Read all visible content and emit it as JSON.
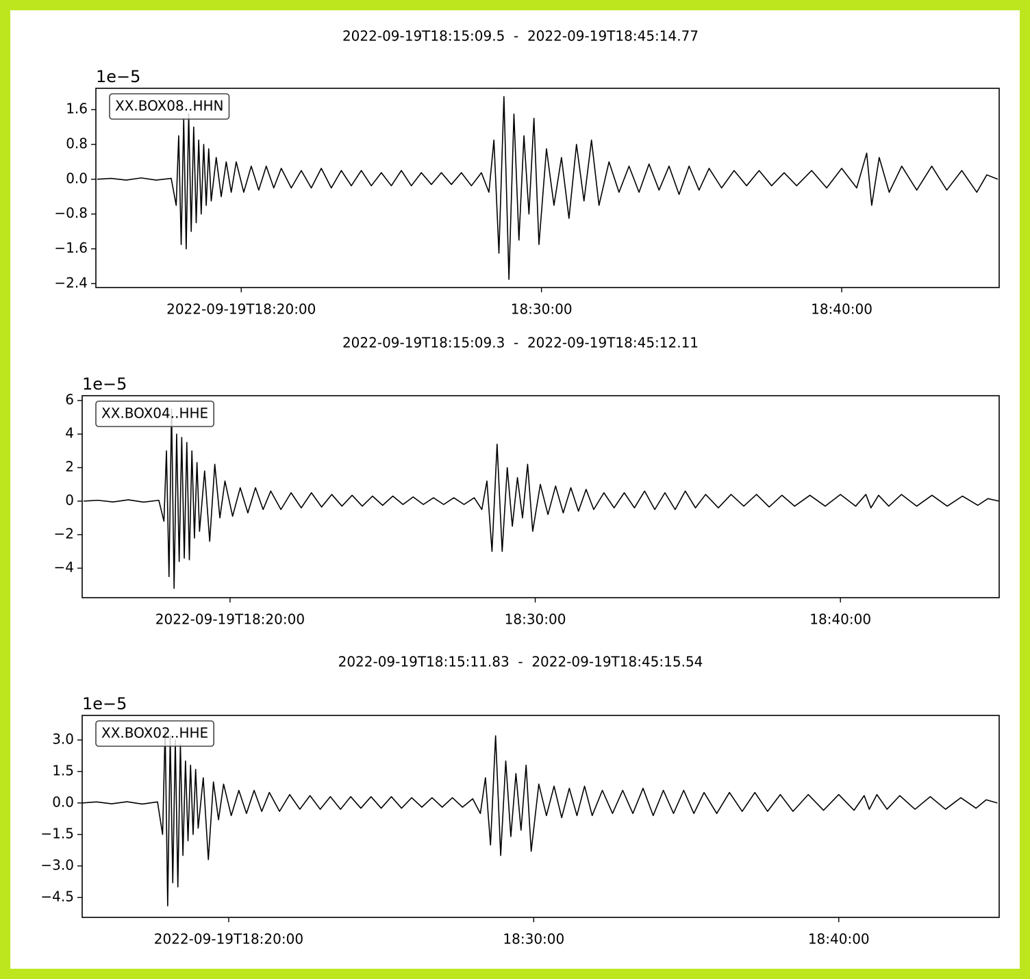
{
  "chart_data": [
    {
      "type": "line",
      "title": "2022-09-19T18:15:09.5  -  2022-09-19T18:45:14.77",
      "y_offset_label": "1e−5",
      "xlim": [
        "2022-09-19T18:15:09.5",
        "2022-09-19T18:45:14.77"
      ],
      "xticks": [
        "2022-09-19T18:20:00",
        {
          "value": "2022-09-19T18:30:00",
          "label": "18:30:00"
        },
        {
          "value": "2022-09-19T18:40:00",
          "label": "18:40:00"
        }
      ],
      "ylim": [
        -2.49,
        2.09
      ],
      "yticks": [
        {
          "value": -2.4,
          "label": "−2.4"
        },
        {
          "value": -1.6,
          "label": "−1.6"
        },
        {
          "value": -0.8,
          "label": "−0.8"
        },
        {
          "value": 0,
          "label": "0.0"
        },
        0.8,
        1.6
      ],
      "x": [
        "18:15:12",
        "18:15:40",
        "18:16:10",
        "18:16:40",
        "18:17:10",
        "18:17:40",
        "18:17:50",
        "18:17:55",
        "18:18:00",
        "18:18:05",
        "18:18:10",
        "18:18:15",
        "18:18:20",
        "18:18:25",
        "18:18:30",
        "18:18:35",
        "18:18:40",
        "18:18:45",
        "18:18:50",
        "18:18:55",
        "18:19:00",
        "18:19:10",
        "18:19:20",
        "18:19:30",
        "18:19:40",
        "18:19:50",
        "18:20:05",
        "18:20:20",
        "18:20:35",
        "18:20:50",
        "18:21:05",
        "18:21:20",
        "18:21:40",
        "18:22:00",
        "18:22:20",
        "18:22:40",
        "18:23:00",
        "18:23:20",
        "18:23:40",
        "18:24:00",
        "18:24:20",
        "18:24:40",
        "18:25:00",
        "18:25:20",
        "18:25:40",
        "18:26:00",
        "18:26:20",
        "18:26:40",
        "18:27:00",
        "18:27:20",
        "18:27:40",
        "18:28:00",
        "18:28:15",
        "18:28:25",
        "18:28:35",
        "18:28:45",
        "18:28:55",
        "18:29:05",
        "18:29:15",
        "18:29:25",
        "18:29:35",
        "18:29:45",
        "18:29:55",
        "18:30:10",
        "18:30:25",
        "18:30:40",
        "18:30:55",
        "18:31:10",
        "18:31:25",
        "18:31:40",
        "18:31:55",
        "18:32:15",
        "18:32:35",
        "18:32:55",
        "18:33:15",
        "18:33:35",
        "18:33:55",
        "18:34:15",
        "18:34:35",
        "18:34:55",
        "18:35:15",
        "18:35:35",
        "18:36:00",
        "18:36:25",
        "18:36:50",
        "18:37:15",
        "18:37:40",
        "18:38:05",
        "18:38:30",
        "18:39:00",
        "18:39:30",
        "18:40:00",
        "18:40:30",
        "18:40:50",
        "18:41:00",
        "18:41:15",
        "18:41:35",
        "18:42:00",
        "18:42:30",
        "18:43:00",
        "18:43:30",
        "18:44:00",
        "18:44:30",
        "18:44:50",
        "18:45:12"
      ],
      "series": [
        {
          "name": "XX.BOX08..HHN",
          "color": "#000000",
          "values": [
            0,
            0.02,
            -0.02,
            0.03,
            -0.02,
            0.02,
            -0.6,
            1.0,
            -1.5,
            1.4,
            -1.6,
            1.5,
            -1.2,
            1.2,
            -1.0,
            0.9,
            -0.8,
            0.8,
            -0.6,
            0.7,
            -0.5,
            0.5,
            -0.4,
            0.4,
            -0.3,
            0.4,
            -0.3,
            0.3,
            -0.25,
            0.3,
            -0.2,
            0.25,
            -0.2,
            0.2,
            -0.2,
            0.25,
            -0.2,
            0.2,
            -0.15,
            0.2,
            -0.15,
            0.15,
            -0.15,
            0.2,
            -0.15,
            0.15,
            -0.12,
            0.15,
            -0.12,
            0.15,
            -0.15,
            0.15,
            -0.3,
            0.9,
            -1.7,
            1.9,
            -2.3,
            1.5,
            -1.4,
            1.0,
            -0.8,
            1.4,
            -1.5,
            0.7,
            -0.6,
            0.5,
            -0.9,
            0.8,
            -0.5,
            0.9,
            -0.6,
            0.4,
            -0.3,
            0.3,
            -0.3,
            0.35,
            -0.25,
            0.3,
            -0.35,
            0.3,
            -0.25,
            0.25,
            -0.2,
            0.2,
            -0.15,
            0.2,
            -0.15,
            0.15,
            -0.15,
            0.2,
            -0.2,
            0.25,
            -0.2,
            0.6,
            -0.6,
            0.5,
            -0.3,
            0.3,
            -0.25,
            0.3,
            -0.25,
            0.2,
            -0.3,
            0.1,
            0
          ]
        }
      ]
    },
    {
      "type": "line",
      "title": "2022-09-19T18:15:09.3  -  2022-09-19T18:45:12.11",
      "y_offset_label": "1e−5",
      "xlim": [
        "2022-09-19T18:15:09.3",
        "2022-09-19T18:45:12.11"
      ],
      "xticks": [
        "2022-09-19T18:20:00",
        {
          "value": "2022-09-19T18:30:00",
          "label": "18:30:00"
        },
        {
          "value": "2022-09-19T18:40:00",
          "label": "18:40:00"
        }
      ],
      "ylim": [
        -5.76,
        6.29
      ],
      "yticks": [
        {
          "value": -4,
          "label": "−4"
        },
        {
          "value": -2,
          "label": "−2"
        },
        0,
        2,
        4,
        6
      ],
      "x": [
        "18:15:12",
        "18:15:40",
        "18:16:10",
        "18:16:40",
        "18:17:10",
        "18:17:40",
        "18:17:50",
        "18:17:55",
        "18:18:00",
        "18:18:05",
        "18:18:10",
        "18:18:15",
        "18:18:20",
        "18:18:25",
        "18:18:30",
        "18:18:35",
        "18:18:40",
        "18:18:45",
        "18:18:50",
        "18:18:55",
        "18:19:00",
        "18:19:10",
        "18:19:20",
        "18:19:30",
        "18:19:40",
        "18:19:50",
        "18:20:05",
        "18:20:20",
        "18:20:35",
        "18:20:50",
        "18:21:05",
        "18:21:20",
        "18:21:40",
        "18:22:00",
        "18:22:20",
        "18:22:40",
        "18:23:00",
        "18:23:20",
        "18:23:40",
        "18:24:00",
        "18:24:20",
        "18:24:40",
        "18:25:00",
        "18:25:20",
        "18:25:40",
        "18:26:00",
        "18:26:20",
        "18:26:40",
        "18:27:00",
        "18:27:20",
        "18:27:40",
        "18:28:00",
        "18:28:15",
        "18:28:25",
        "18:28:35",
        "18:28:45",
        "18:28:55",
        "18:29:05",
        "18:29:15",
        "18:29:25",
        "18:29:35",
        "18:29:45",
        "18:29:55",
        "18:30:10",
        "18:30:25",
        "18:30:40",
        "18:30:55",
        "18:31:10",
        "18:31:25",
        "18:31:40",
        "18:31:55",
        "18:32:15",
        "18:32:35",
        "18:32:55",
        "18:33:15",
        "18:33:35",
        "18:33:55",
        "18:34:15",
        "18:34:35",
        "18:34:55",
        "18:35:15",
        "18:35:35",
        "18:36:00",
        "18:36:25",
        "18:36:50",
        "18:37:15",
        "18:37:40",
        "18:38:05",
        "18:38:30",
        "18:39:00",
        "18:39:30",
        "18:40:00",
        "18:40:30",
        "18:40:50",
        "18:41:00",
        "18:41:15",
        "18:41:35",
        "18:42:00",
        "18:42:30",
        "18:43:00",
        "18:43:30",
        "18:44:00",
        "18:44:30",
        "18:44:50",
        "18:45:12"
      ],
      "series": [
        {
          "name": "XX.BOX04..HHE",
          "color": "#000000",
          "values": [
            0,
            0.05,
            -0.05,
            0.08,
            -0.06,
            0.05,
            -1.2,
            3.0,
            -4.5,
            5.5,
            -5.2,
            4.0,
            -3.6,
            3.8,
            -3.4,
            3.5,
            -3.5,
            3.0,
            -2.2,
            2.3,
            -1.8,
            1.8,
            -2.4,
            2.2,
            -1.0,
            1.2,
            -0.9,
            0.8,
            -0.7,
            0.8,
            -0.5,
            0.6,
            -0.5,
            0.5,
            -0.4,
            0.5,
            -0.35,
            0.4,
            -0.3,
            0.35,
            -0.3,
            0.3,
            -0.25,
            0.3,
            -0.2,
            0.25,
            -0.2,
            0.2,
            -0.2,
            0.2,
            -0.2,
            0.2,
            -0.5,
            1.2,
            -3.0,
            3.4,
            -3.0,
            2.0,
            -1.5,
            1.4,
            -1.0,
            2.2,
            -1.8,
            1.0,
            -0.8,
            0.9,
            -0.7,
            0.8,
            -0.6,
            0.7,
            -0.5,
            0.5,
            -0.4,
            0.5,
            -0.4,
            0.6,
            -0.5,
            0.5,
            -0.5,
            0.6,
            -0.4,
            0.4,
            -0.4,
            0.4,
            -0.3,
            0.4,
            -0.35,
            0.35,
            -0.3,
            0.35,
            -0.3,
            0.4,
            -0.3,
            0.4,
            -0.4,
            0.35,
            -0.3,
            0.4,
            -0.3,
            0.35,
            -0.3,
            0.3,
            -0.25,
            0.15,
            0
          ]
        }
      ]
    },
    {
      "type": "line",
      "title": "2022-09-19T18:15:11.83  -  2022-09-19T18:45:15.54",
      "y_offset_label": "1e−5",
      "xlim": [
        "2022-09-19T18:15:11.83",
        "2022-09-19T18:45:15.54"
      ],
      "xticks": [
        "2022-09-19T18:20:00",
        {
          "value": "2022-09-19T18:30:00",
          "label": "18:30:00"
        },
        {
          "value": "2022-09-19T18:40:00",
          "label": "18:40:00"
        }
      ],
      "ylim": [
        -5.45,
        4.17
      ],
      "yticks": [
        {
          "value": -4.5,
          "label": "−4.5"
        },
        {
          "value": -3,
          "label": "−3.0"
        },
        {
          "value": -1.5,
          "label": "−1.5"
        },
        {
          "value": 0,
          "label": "0.0"
        },
        1.5,
        {
          "value": 3,
          "label": "3.0"
        }
      ],
      "x": [
        "18:15:12",
        "18:15:40",
        "18:16:10",
        "18:16:40",
        "18:17:10",
        "18:17:40",
        "18:17:50",
        "18:17:55",
        "18:18:00",
        "18:18:05",
        "18:18:10",
        "18:18:15",
        "18:18:20",
        "18:18:25",
        "18:18:30",
        "18:18:35",
        "18:18:40",
        "18:18:45",
        "18:18:50",
        "18:18:55",
        "18:19:00",
        "18:19:10",
        "18:19:20",
        "18:19:30",
        "18:19:40",
        "18:19:50",
        "18:20:05",
        "18:20:20",
        "18:20:35",
        "18:20:50",
        "18:21:05",
        "18:21:20",
        "18:21:40",
        "18:22:00",
        "18:22:20",
        "18:22:40",
        "18:23:00",
        "18:23:20",
        "18:23:40",
        "18:24:00",
        "18:24:20",
        "18:24:40",
        "18:25:00",
        "18:25:20",
        "18:25:40",
        "18:26:00",
        "18:26:20",
        "18:26:40",
        "18:27:00",
        "18:27:20",
        "18:27:40",
        "18:28:00",
        "18:28:15",
        "18:28:25",
        "18:28:35",
        "18:28:45",
        "18:28:55",
        "18:29:05",
        "18:29:15",
        "18:29:25",
        "18:29:35",
        "18:29:45",
        "18:29:55",
        "18:30:10",
        "18:30:25",
        "18:30:40",
        "18:30:55",
        "18:31:10",
        "18:31:25",
        "18:31:40",
        "18:31:55",
        "18:32:15",
        "18:32:35",
        "18:32:55",
        "18:33:15",
        "18:33:35",
        "18:33:55",
        "18:34:15",
        "18:34:35",
        "18:34:55",
        "18:35:15",
        "18:35:35",
        "18:36:00",
        "18:36:25",
        "18:36:50",
        "18:37:15",
        "18:37:40",
        "18:38:05",
        "18:38:30",
        "18:39:00",
        "18:39:30",
        "18:40:00",
        "18:40:30",
        "18:40:50",
        "18:41:00",
        "18:41:15",
        "18:41:35",
        "18:42:00",
        "18:42:30",
        "18:43:00",
        "18:43:30",
        "18:44:00",
        "18:44:30",
        "18:44:50",
        "18:45:12"
      ],
      "series": [
        {
          "name": "XX.BOX02..HHE",
          "color": "#000000",
          "values": [
            0,
            0.05,
            -0.04,
            0.06,
            -0.05,
            0.05,
            -1.5,
            3.5,
            -4.9,
            3.2,
            -3.8,
            3.0,
            -4.0,
            2.8,
            -2.5,
            2.0,
            -1.8,
            1.8,
            -1.5,
            1.6,
            -1.2,
            1.2,
            -2.7,
            1.0,
            -0.8,
            0.9,
            -0.6,
            0.6,
            -0.5,
            0.6,
            -0.4,
            0.5,
            -0.4,
            0.4,
            -0.3,
            0.35,
            -0.3,
            0.3,
            -0.3,
            0.3,
            -0.25,
            0.3,
            -0.25,
            0.3,
            -0.25,
            0.25,
            -0.2,
            0.25,
            -0.2,
            0.25,
            -0.2,
            0.2,
            -0.5,
            1.2,
            -2.0,
            3.2,
            -2.5,
            2.0,
            -1.6,
            1.4,
            -1.3,
            1.8,
            -2.3,
            0.9,
            -0.6,
            0.8,
            -0.7,
            0.7,
            -0.6,
            0.8,
            -0.6,
            0.6,
            -0.5,
            0.6,
            -0.5,
            0.7,
            -0.6,
            0.6,
            -0.5,
            0.6,
            -0.5,
            0.5,
            -0.5,
            0.5,
            -0.4,
            0.5,
            -0.4,
            0.4,
            -0.4,
            0.4,
            -0.35,
            0.4,
            -0.35,
            0.35,
            -0.3,
            0.4,
            -0.3,
            0.35,
            -0.3,
            0.3,
            -0.3,
            0.25,
            -0.25,
            0.15,
            0
          ]
        }
      ]
    }
  ]
}
